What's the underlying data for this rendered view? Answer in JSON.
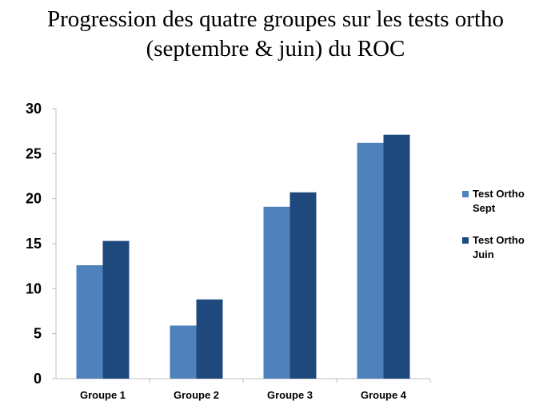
{
  "title_lines": [
    "Progression des quatre groupes sur les tests ortho",
    "(septembre & juin) du ROC"
  ],
  "colors": {
    "series_1": "#4F81BD",
    "series_2": "#1F497D",
    "axis": "#BFBFBF"
  },
  "chart_data": {
    "type": "bar",
    "title": "Progression des quatre groupes sur les tests ortho (septembre & juin) du ROC",
    "categories": [
      "Groupe 1",
      "Groupe 2",
      "Groupe 3",
      "Groupe 4"
    ],
    "series": [
      {
        "name": "Test Ortho Sept",
        "values": [
          12.6,
          5.9,
          19.1,
          26.2
        ]
      },
      {
        "name": "Test Ortho Juin",
        "values": [
          15.3,
          8.8,
          20.7,
          27.1
        ]
      }
    ],
    "ylim": [
      0,
      30
    ],
    "yticks": [
      "0",
      "5",
      "10",
      "15",
      "20",
      "25",
      "30"
    ],
    "grid": false,
    "legend_position": "right"
  },
  "legend": [
    {
      "line1": "Test Ortho",
      "line2": "Sept"
    },
    {
      "line1": "Test Ortho",
      "line2": "Juin"
    }
  ]
}
